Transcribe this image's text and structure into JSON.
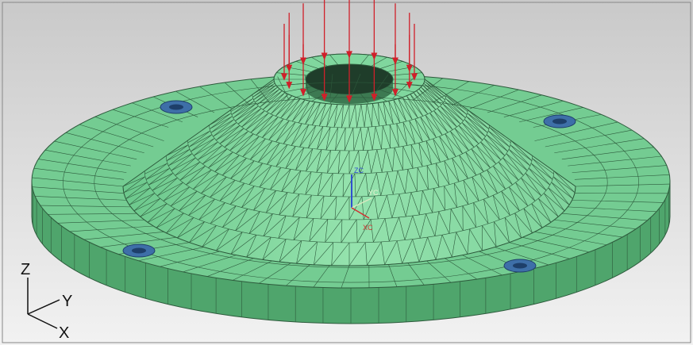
{
  "viewport": {
    "triad": {
      "z": "Z",
      "y": "Y",
      "x": "X"
    },
    "wcs": {
      "z": "ZC",
      "y": "YC",
      "x": "XC"
    }
  }
}
